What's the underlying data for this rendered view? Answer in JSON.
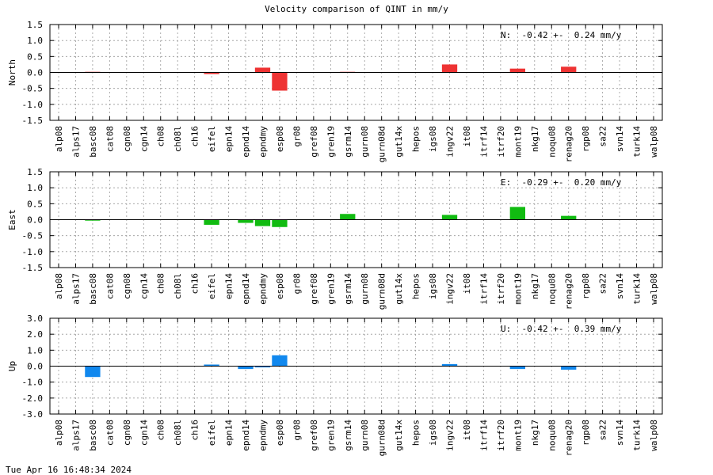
{
  "title": "Velocity comparison of QINT in mm/y",
  "footer": "Tue Apr 16 16:48:34 2024",
  "chart_data": [
    {
      "type": "bar",
      "ylabel": "North",
      "ylim": [
        -1.5,
        1.5
      ],
      "yticks": [
        "1.5",
        "1.0",
        "0.5",
        "0.0",
        "-0.5",
        "-1.0",
        "-1.5"
      ],
      "grid": true,
      "annotation": "N:  -0.42 +-  0.24 mm/y",
      "color": "#ee3333",
      "categories": [
        "alp08",
        "alps17",
        "basc08",
        "cat08",
        "cgn08",
        "cgn14",
        "ch08",
        "ch08l",
        "ch16",
        "eifel",
        "epn14",
        "epnd14",
        "epndmy",
        "esp08",
        "gr08",
        "gref08",
        "gren19",
        "gsrm14",
        "gurn08",
        "gurn08d",
        "gut14x",
        "hepos",
        "igs08",
        "ingv22",
        "it08",
        "itrf14",
        "itrf20",
        "mont19",
        "nkg17",
        "noqu08",
        "renag20",
        "rgp08",
        "sa22",
        "svn14",
        "turk14",
        "walp08"
      ],
      "values": [
        0,
        0,
        0.02,
        0,
        0,
        0,
        0,
        0,
        0,
        -0.05,
        0,
        0,
        0.15,
        -0.57,
        0,
        0,
        0,
        0.02,
        0,
        0,
        0,
        0,
        0,
        0.25,
        0,
        0,
        0,
        0.12,
        0,
        0,
        0.18,
        0,
        0,
        0,
        0,
        0
      ]
    },
    {
      "type": "bar",
      "ylabel": "East",
      "ylim": [
        -1.5,
        1.5
      ],
      "yticks": [
        "1.5",
        "1.0",
        "0.5",
        "0.0",
        "-0.5",
        "-1.0",
        "-1.5"
      ],
      "grid": true,
      "annotation": "E:  -0.29 +-  0.20 mm/y",
      "color": "#11bb11",
      "categories": [
        "alp08",
        "alps17",
        "basc08",
        "cat08",
        "cgn08",
        "cgn14",
        "ch08",
        "ch08l",
        "ch16",
        "eifel",
        "epn14",
        "epnd14",
        "epndmy",
        "esp08",
        "gr08",
        "gref08",
        "gren19",
        "gsrm14",
        "gurn08",
        "gurn08d",
        "gut14x",
        "hepos",
        "igs08",
        "ingv22",
        "it08",
        "itrf14",
        "itrf20",
        "mont19",
        "nkg17",
        "noqu08",
        "renag20",
        "rgp08",
        "sa22",
        "svn14",
        "turk14",
        "walp08"
      ],
      "values": [
        0,
        0,
        -0.03,
        0,
        0,
        0,
        0,
        0,
        0,
        -0.16,
        0,
        -0.1,
        -0.2,
        -0.23,
        0,
        0,
        0,
        0.18,
        0,
        0,
        0,
        0,
        0,
        0.15,
        0,
        0,
        0,
        0.4,
        0,
        0,
        0.12,
        0,
        0,
        0,
        0,
        0
      ]
    },
    {
      "type": "bar",
      "ylabel": "Up",
      "ylim": [
        -3.0,
        3.0
      ],
      "yticks": [
        "3.0",
        "2.0",
        "1.0",
        "0.0",
        "-1.0",
        "-2.0",
        "-3.0"
      ],
      "grid": true,
      "annotation": "U:  -0.42 +-  0.39 mm/y",
      "color": "#1188ee",
      "categories": [
        "alp08",
        "alps17",
        "basc08",
        "cat08",
        "cgn08",
        "cgn14",
        "ch08",
        "ch08l",
        "ch16",
        "eifel",
        "epn14",
        "epnd14",
        "epndmy",
        "esp08",
        "gr08",
        "gref08",
        "gren19",
        "gsrm14",
        "gurn08",
        "gurn08d",
        "gut14x",
        "hepos",
        "igs08",
        "ingv22",
        "it08",
        "itrf14",
        "itrf20",
        "mont19",
        "nkg17",
        "noqu08",
        "renag20",
        "rgp08",
        "sa22",
        "svn14",
        "turk14",
        "walp08"
      ],
      "values": [
        0,
        0,
        -0.68,
        0,
        0,
        0,
        0,
        0,
        0,
        0.1,
        0,
        -0.18,
        -0.08,
        0.68,
        0,
        0,
        0,
        0,
        0,
        0,
        0,
        0,
        0,
        0.13,
        0,
        0,
        0,
        -0.18,
        0,
        0,
        -0.22,
        0,
        0,
        0,
        0,
        0
      ]
    }
  ]
}
